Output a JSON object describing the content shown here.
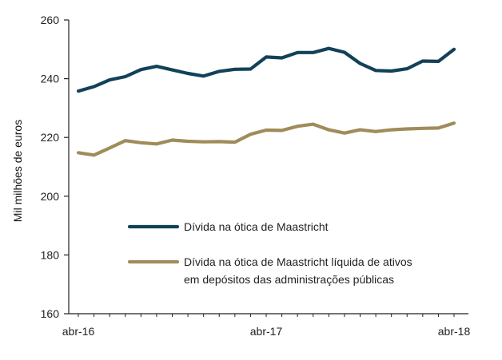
{
  "chart_data": {
    "type": "line",
    "ylabel": "Mil milhões de euros",
    "xlabel": "",
    "ylim": [
      160,
      260
    ],
    "yticks": [
      160,
      180,
      200,
      220,
      240,
      260
    ],
    "x_tick_labels": [
      "abr-16",
      "abr-17",
      "abr-18"
    ],
    "x_tick_index": [
      0,
      12,
      24
    ],
    "x": [
      "abr-16",
      "mai-16",
      "jun-16",
      "jul-16",
      "ago-16",
      "set-16",
      "out-16",
      "nov-16",
      "dez-16",
      "jan-17",
      "fev-17",
      "mar-17",
      "abr-17",
      "mai-17",
      "jun-17",
      "jul-17",
      "ago-17",
      "set-17",
      "out-17",
      "nov-17",
      "dez-17",
      "jan-18",
      "fev-18",
      "mar-18",
      "abr-18"
    ],
    "grid": false,
    "legend_position": "lower-center",
    "series": [
      {
        "name": "Dívida na ótica de Maastricht",
        "color": "#12415a",
        "values": [
          235.8,
          237.3,
          239.6,
          240.7,
          243.1,
          244.2,
          243.0,
          241.8,
          240.9,
          242.5,
          243.2,
          243.3,
          247.4,
          247.1,
          248.9,
          248.9,
          250.3,
          249.0,
          245.2,
          242.8,
          242.6,
          243.4,
          246.0,
          245.9,
          250.0
        ]
      },
      {
        "name": "Dívida na ótica de Maastricht líquida de ativos em depósitos das administrações públicas",
        "name_lines": [
          "Dívida na ótica de Maastricht líquida de ativos",
          "em depósitos das administrações públicas"
        ],
        "color": "#a08c5a",
        "values": [
          214.8,
          214.0,
          216.4,
          218.9,
          218.2,
          217.8,
          219.1,
          218.7,
          218.5,
          218.6,
          218.4,
          221.1,
          222.5,
          222.4,
          223.8,
          224.5,
          222.6,
          221.5,
          222.6,
          222.0,
          222.6,
          222.9,
          223.1,
          223.2,
          224.9
        ]
      }
    ]
  }
}
